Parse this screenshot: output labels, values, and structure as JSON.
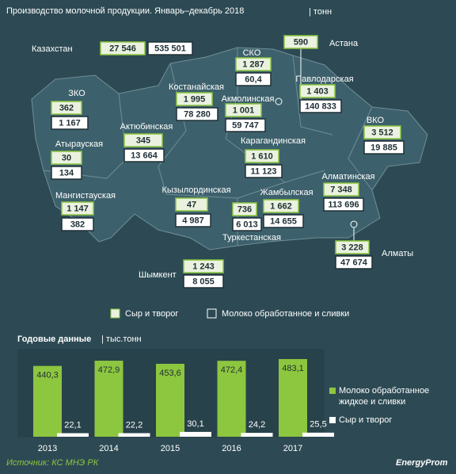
{
  "header": {
    "title": "Производство молочной продукции. Январь–декабрь 2018",
    "unit": "| тонн"
  },
  "map": {
    "regions": [
      {
        "name": "Казахстан",
        "cheese": "27 546",
        "milk": "535 501"
      },
      {
        "name": "Астана",
        "cheese": "590"
      },
      {
        "name": "СКО",
        "cheese": "1 287",
        "milk": "60,4"
      },
      {
        "name": "Павлодарская",
        "cheese": "1 403",
        "milk": "140 833"
      },
      {
        "name": "Костанайская",
        "cheese": "1 995",
        "milk": "78 280"
      },
      {
        "name": "Акмолинская",
        "cheese": "1 001",
        "milk": "59 747"
      },
      {
        "name": "ЗКО",
        "cheese": "362",
        "milk": "1 167"
      },
      {
        "name": "ВКО",
        "cheese": "3 512",
        "milk": "19 885"
      },
      {
        "name": "Актюбинская",
        "cheese": "345",
        "milk": "13 664"
      },
      {
        "name": "Карагандинская",
        "cheese": "1 610",
        "milk": "11 123"
      },
      {
        "name": "Атырауская",
        "cheese": "30",
        "milk": "134"
      },
      {
        "name": "Алматинская",
        "cheese": "7 348",
        "milk": "113 696"
      },
      {
        "name": "Кызылординская",
        "cheese": "47",
        "milk": "4 987"
      },
      {
        "name": "Жамбылская",
        "cheese": "1 662",
        "milk": "14 655"
      },
      {
        "name": "Мангистауская",
        "cheese": "1 147",
        "milk": "382"
      },
      {
        "name": "Туркестанская",
        "cheese": "736",
        "milk": "6 013"
      },
      {
        "name": "Шымкент",
        "cheese": "1 243",
        "milk": "8 055"
      },
      {
        "name": "Алматы",
        "cheese": "3 228",
        "milk": "47 674"
      }
    ]
  },
  "legend": {
    "cheese": "Сыр и творог",
    "milk": "Молоко обработанное и сливки"
  },
  "chart_data": {
    "type": "bar",
    "title": "Годовые данные",
    "unit": "| тыс.тонн",
    "categories": [
      "2013",
      "2014",
      "2015",
      "2016",
      "2017"
    ],
    "series": [
      {
        "name": "Молоко обработанное жидкое и сливки",
        "color": "#8dc63f",
        "values": [
          440.3,
          472.9,
          453.6,
          472.4,
          483.1
        ],
        "value_labels": [
          "440,3",
          "472,9",
          "453,6",
          "472,4",
          "483,1"
        ]
      },
      {
        "name": "Сыр и творог",
        "color": "#ffffff",
        "values": [
          22.1,
          22.2,
          30.1,
          24.2,
          25.5
        ],
        "value_labels": [
          "22,1",
          "22,2",
          "30,1",
          "24,2",
          "25,5"
        ]
      }
    ]
  },
  "source": "Источник: КС МНЭ РК",
  "brand": "EnergyProm"
}
